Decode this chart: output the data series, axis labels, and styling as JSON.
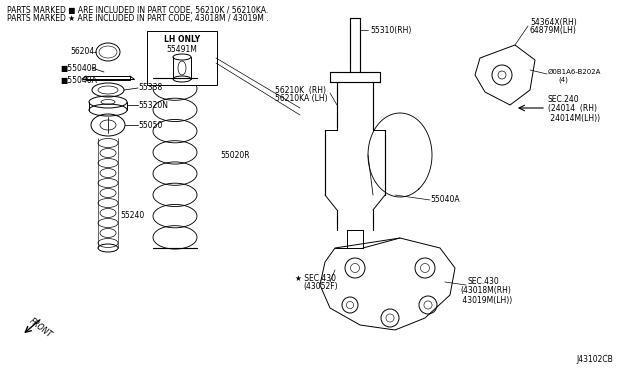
{
  "bg_color": "#ffffff",
  "diagram_code": "J43102CB",
  "header_line1": "PARTS MARKED ■ ARE INCLUDED IN PART CODE, 56210K / 56210KA.",
  "header_line2": "PARTS MARKED ★ ARE INCLUDED IN PART CODE, 43018M / 43019M .",
  "lw": 0.7,
  "fs": 6.0
}
